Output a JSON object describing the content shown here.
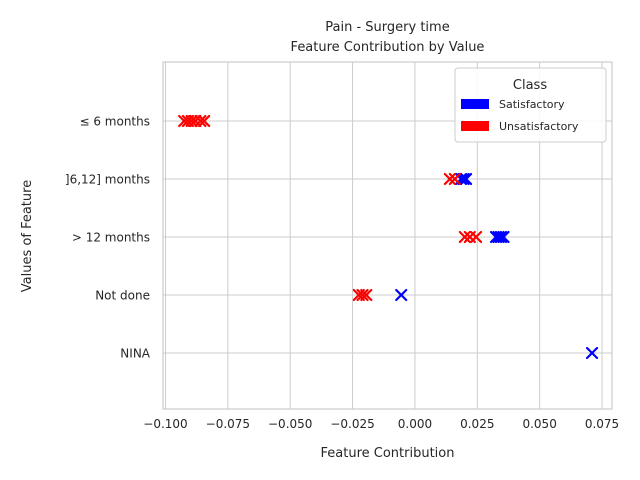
{
  "chart_data": {
    "type": "scatter",
    "title": "Pain - Surgery time",
    "subtitle": "Feature Contribution by Value",
    "xlabel": "Feature Contribution",
    "ylabel": "Values of Feature",
    "categories": [
      "≤ 6 months",
      "]6,12] months",
      "> 12 months",
      "Not done",
      "NINA"
    ],
    "xlim": [
      -0.101,
      0.079
    ],
    "xticks": [
      -0.1,
      -0.075,
      -0.05,
      -0.025,
      0.0,
      0.025,
      0.05,
      0.075
    ],
    "xtick_labels": [
      "−0.100",
      "−0.075",
      "−0.050",
      "−0.025",
      "0.000",
      "0.025",
      "0.050",
      "0.075"
    ],
    "grid": true,
    "marker": "x",
    "legend": {
      "title": "Class",
      "position": "top-right"
    },
    "series": [
      {
        "name": "Satisfactory",
        "color": "#0000ff",
        "points": [
          {
            "x": 0.0185,
            "y": "]6,12] months"
          },
          {
            "x": 0.0195,
            "y": "]6,12] months"
          },
          {
            "x": 0.0205,
            "y": "]6,12] months"
          },
          {
            "x": 0.0325,
            "y": "> 12 months"
          },
          {
            "x": 0.0335,
            "y": "> 12 months"
          },
          {
            "x": 0.0345,
            "y": "> 12 months"
          },
          {
            "x": 0.0355,
            "y": "> 12 months"
          },
          {
            "x": -0.0055,
            "y": "Not done"
          },
          {
            "x": 0.071,
            "y": "NINA"
          }
        ]
      },
      {
        "name": "Unsatisfactory",
        "color": "#ff0000",
        "points": [
          {
            "x": -0.0925,
            "y": "≤ 6 months"
          },
          {
            "x": -0.091,
            "y": "≤ 6 months"
          },
          {
            "x": -0.0895,
            "y": "≤ 6 months"
          },
          {
            "x": -0.088,
            "y": "≤ 6 months"
          },
          {
            "x": -0.086,
            "y": "≤ 6 months"
          },
          {
            "x": -0.0845,
            "y": "≤ 6 months"
          },
          {
            "x": 0.014,
            "y": "]6,12] months"
          },
          {
            "x": 0.016,
            "y": "]6,12] months"
          },
          {
            "x": 0.02,
            "y": "> 12 months"
          },
          {
            "x": 0.022,
            "y": "> 12 months"
          },
          {
            "x": 0.0245,
            "y": "> 12 months"
          },
          {
            "x": -0.0225,
            "y": "Not done"
          },
          {
            "x": -0.021,
            "y": "Not done"
          },
          {
            "x": -0.0195,
            "y": "Not done"
          }
        ]
      }
    ]
  }
}
